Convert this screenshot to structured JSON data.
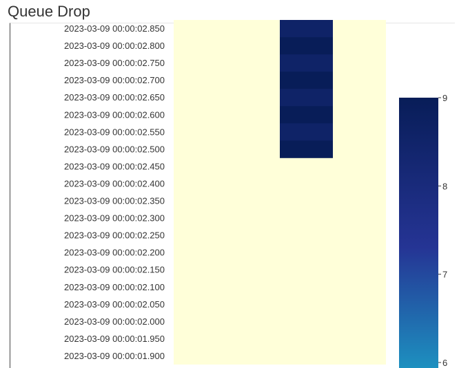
{
  "panel": {
    "title": "Queue Drop"
  },
  "colors": {
    "background_cell": "#ffffd9",
    "cmap_low": "#1d91c0",
    "cmap_mid": "#253494",
    "cmap_high": "#081d58"
  },
  "chart_data": {
    "type": "heatmap",
    "title": "",
    "colormap": "YlGnBu",
    "y_categories": [
      "2023-03-09 00:00:02.850",
      "2023-03-09 00:00:02.800",
      "2023-03-09 00:00:02.750",
      "2023-03-09 00:00:02.700",
      "2023-03-09 00:00:02.650",
      "2023-03-09 00:00:02.600",
      "2023-03-09 00:00:02.550",
      "2023-03-09 00:00:02.500",
      "2023-03-09 00:00:02.450",
      "2023-03-09 00:00:02.400",
      "2023-03-09 00:00:02.350",
      "2023-03-09 00:00:02.300",
      "2023-03-09 00:00:02.250",
      "2023-03-09 00:00:02.200",
      "2023-03-09 00:00:02.150",
      "2023-03-09 00:00:02.100",
      "2023-03-09 00:00:02.050",
      "2023-03-09 00:00:02.000",
      "2023-03-09 00:00:01.950",
      "2023-03-09 00:00:01.900"
    ],
    "column_count": 4,
    "values": [
      [
        null,
        null,
        8.6,
        null
      ],
      [
        null,
        null,
        9,
        null
      ],
      [
        null,
        null,
        8.6,
        null
      ],
      [
        null,
        null,
        9,
        null
      ],
      [
        null,
        null,
        8.6,
        null
      ],
      [
        null,
        null,
        9,
        null
      ],
      [
        null,
        null,
        8.6,
        null
      ],
      [
        null,
        null,
        9,
        null
      ],
      [
        null,
        null,
        null,
        null
      ],
      [
        null,
        null,
        null,
        null
      ],
      [
        null,
        null,
        null,
        null
      ],
      [
        null,
        null,
        null,
        null
      ],
      [
        null,
        null,
        null,
        null
      ],
      [
        null,
        null,
        null,
        null
      ],
      [
        null,
        null,
        null,
        null
      ],
      [
        null,
        null,
        null,
        null
      ],
      [
        null,
        null,
        null,
        null
      ],
      [
        null,
        null,
        null,
        null
      ],
      [
        null,
        null,
        null,
        null
      ],
      [
        null,
        null,
        null,
        null
      ]
    ],
    "colorbar": {
      "ticks": [
        "9",
        "8",
        "7",
        "6"
      ],
      "range": [
        6,
        9
      ]
    }
  }
}
